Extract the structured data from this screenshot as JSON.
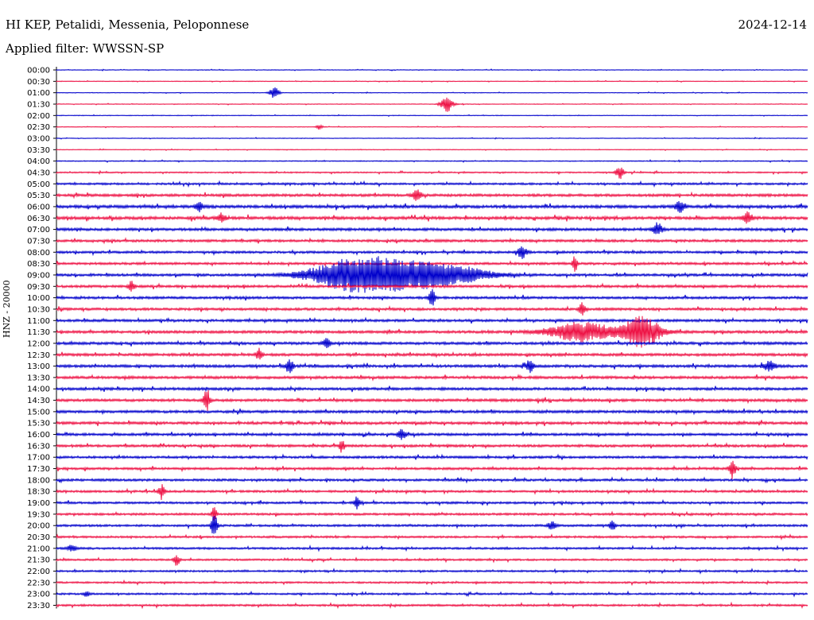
{
  "header": {
    "station": "HI KEP, Petalidi, Messenia, Peloponnese",
    "date": "2024-12-14",
    "filter": "Applied filter: WWSSN-SP"
  },
  "chart_data": {
    "type": "line",
    "title": "HI KEP, Petalidi, Messenia, Peloponnese",
    "ylabel": "HNZ - 20000",
    "xlabel": "",
    "y_tick_labels": [
      "00:00",
      "00:30",
      "01:00",
      "01:30",
      "02:00",
      "02:30",
      "03:00",
      "03:30",
      "04:00",
      "04:30",
      "05:00",
      "05:30",
      "06:00",
      "06:30",
      "07:00",
      "07:30",
      "08:00",
      "08:30",
      "09:00",
      "09:30",
      "10:00",
      "10:30",
      "11:00",
      "11:30",
      "12:00",
      "12:30",
      "13:00",
      "13:30",
      "14:00",
      "14:30",
      "15:00",
      "15:30",
      "16:00",
      "16:30",
      "17:00",
      "17:30",
      "18:00",
      "18:30",
      "19:00",
      "19:30",
      "20:00",
      "20:30",
      "21:00",
      "21:30",
      "22:00",
      "22:30",
      "23:00",
      "23:30"
    ],
    "trace_colors": [
      "#0000cc",
      "#ee1144"
    ],
    "noise_levels": [
      0.4,
      0.4,
      0.4,
      0.4,
      0.4,
      0.4,
      0.4,
      0.4,
      0.6,
      0.8,
      1.2,
      1.6,
      1.8,
      1.8,
      1.6,
      1.5,
      1.4,
      1.4,
      1.5,
      1.5,
      1.5,
      1.5,
      1.5,
      1.6,
      1.6,
      1.6,
      1.6,
      1.6,
      1.6,
      1.6,
      1.6,
      1.6,
      1.5,
      1.5,
      1.4,
      1.4,
      1.4,
      1.3,
      1.3,
      1.3,
      1.3,
      1.2,
      1.2,
      1.1,
      1.1,
      1.1,
      1.1,
      1.2
    ],
    "events": [
      {
        "row": 2,
        "x": 0.29,
        "amp": 8,
        "width": 0.006
      },
      {
        "row": 3,
        "x": 0.52,
        "amp": 10,
        "width": 0.008
      },
      {
        "row": 5,
        "x": 0.35,
        "amp": 4,
        "width": 0.004
      },
      {
        "row": 9,
        "x": 0.75,
        "amp": 8,
        "width": 0.005
      },
      {
        "row": 11,
        "x": 0.48,
        "amp": 7,
        "width": 0.006
      },
      {
        "row": 12,
        "x": 0.19,
        "amp": 9,
        "width": 0.004
      },
      {
        "row": 12,
        "x": 0.83,
        "amp": 8,
        "width": 0.006
      },
      {
        "row": 13,
        "x": 0.22,
        "amp": 7,
        "width": 0.005
      },
      {
        "row": 13,
        "x": 0.92,
        "amp": 8,
        "width": 0.006
      },
      {
        "row": 14,
        "x": 0.8,
        "amp": 9,
        "width": 0.006
      },
      {
        "row": 16,
        "x": 0.62,
        "amp": 8,
        "width": 0.006
      },
      {
        "row": 17,
        "x": 0.69,
        "amp": 12,
        "width": 0.003
      },
      {
        "row": 18,
        "x": 0.39,
        "amp": 18,
        "width": 0.055
      },
      {
        "row": 18,
        "x": 0.46,
        "amp": 16,
        "width": 0.06
      },
      {
        "row": 18,
        "x": 0.53,
        "amp": 9,
        "width": 0.05
      },
      {
        "row": 19,
        "x": 0.1,
        "amp": 7,
        "width": 0.004
      },
      {
        "row": 20,
        "x": 0.5,
        "amp": 11,
        "width": 0.004
      },
      {
        "row": 21,
        "x": 0.7,
        "amp": 9,
        "width": 0.004
      },
      {
        "row": 23,
        "x": 0.7,
        "amp": 12,
        "width": 0.045
      },
      {
        "row": 23,
        "x": 0.78,
        "amp": 20,
        "width": 0.025
      },
      {
        "row": 24,
        "x": 0.36,
        "amp": 6,
        "width": 0.005
      },
      {
        "row": 25,
        "x": 0.27,
        "amp": 8,
        "width": 0.004
      },
      {
        "row": 26,
        "x": 0.31,
        "amp": 9,
        "width": 0.005
      },
      {
        "row": 26,
        "x": 0.63,
        "amp": 8,
        "width": 0.005
      },
      {
        "row": 26,
        "x": 0.95,
        "amp": 7,
        "width": 0.008
      },
      {
        "row": 29,
        "x": 0.2,
        "amp": 16,
        "width": 0.004
      },
      {
        "row": 32,
        "x": 0.46,
        "amp": 7,
        "width": 0.005
      },
      {
        "row": 33,
        "x": 0.38,
        "amp": 10,
        "width": 0.003
      },
      {
        "row": 35,
        "x": 0.9,
        "amp": 14,
        "width": 0.004
      },
      {
        "row": 37,
        "x": 0.14,
        "amp": 10,
        "width": 0.004
      },
      {
        "row": 38,
        "x": 0.4,
        "amp": 8,
        "width": 0.004
      },
      {
        "row": 39,
        "x": 0.21,
        "amp": 12,
        "width": 0.003
      },
      {
        "row": 40,
        "x": 0.21,
        "amp": 16,
        "width": 0.004
      },
      {
        "row": 40,
        "x": 0.66,
        "amp": 6,
        "width": 0.005
      },
      {
        "row": 40,
        "x": 0.74,
        "amp": 7,
        "width": 0.004
      },
      {
        "row": 42,
        "x": 0.02,
        "amp": 4,
        "width": 0.006
      },
      {
        "row": 43,
        "x": 0.16,
        "amp": 7,
        "width": 0.004
      },
      {
        "row": 46,
        "x": 0.04,
        "amp": 3,
        "width": 0.004
      }
    ]
  }
}
